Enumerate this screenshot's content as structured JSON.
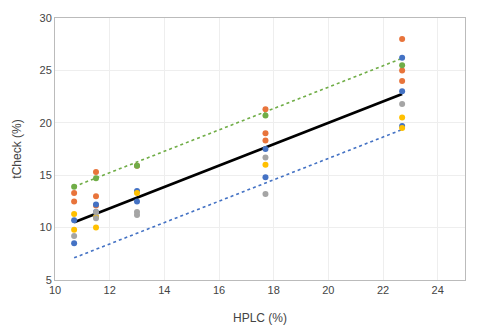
{
  "chart_data": {
    "type": "scatter",
    "xlabel": "HPLC (%)",
    "ylabel": "tCheck (%)",
    "xlim": [
      10,
      25
    ],
    "ylim": [
      5,
      30
    ],
    "xticks": [
      10,
      12,
      14,
      16,
      18,
      20,
      22,
      24
    ],
    "yticks": [
      5,
      10,
      15,
      20,
      25,
      30
    ],
    "grid": true,
    "series": [
      {
        "type": "scatter",
        "color": "#E8743B",
        "x": [
          10.7,
          10.7,
          11.5,
          11.5,
          11.5,
          13.0,
          17.7,
          17.7,
          17.7,
          22.7,
          22.7,
          22.7
        ],
        "values": [
          13.3,
          12.5,
          15.3,
          13.0,
          12.1,
          15.9,
          21.3,
          19.0,
          18.3,
          28.0,
          24.0,
          25.0
        ]
      },
      {
        "type": "scatter",
        "color": "#4472C4",
        "x": [
          10.7,
          10.7,
          11.5,
          11.5,
          11.5,
          13.0,
          13.0,
          17.7,
          17.7,
          22.7,
          22.7,
          22.7
        ],
        "values": [
          10.7,
          8.5,
          12.2,
          11.5,
          11.0,
          13.5,
          12.5,
          17.5,
          14.8,
          26.2,
          23.0,
          19.7
        ]
      },
      {
        "type": "scatter",
        "color": "#70AD47",
        "x": [
          10.7,
          11.5,
          13.0,
          17.7,
          22.7
        ],
        "values": [
          13.9,
          14.7,
          15.9,
          20.7,
          25.5
        ]
      },
      {
        "type": "scatter",
        "color": "#FFC000",
        "x": [
          10.7,
          10.7,
          11.5,
          11.5,
          13.0,
          17.7,
          22.7,
          22.7
        ],
        "values": [
          11.3,
          9.8,
          11.0,
          10.0,
          13.3,
          16.0,
          20.5,
          19.5
        ]
      },
      {
        "type": "scatter",
        "color": "#A5A5A5",
        "x": [
          10.7,
          11.5,
          11.5,
          13.0,
          13.0,
          17.7,
          17.7,
          22.7
        ],
        "values": [
          9.2,
          11.5,
          10.9,
          11.5,
          11.2,
          16.7,
          13.2,
          21.8
        ]
      },
      {
        "type": "line",
        "color": "black",
        "line_style": "solid",
        "x": [
          10.7,
          22.7
        ],
        "values": [
          10.514,
          22.754
        ]
      },
      {
        "type": "line",
        "color": "#70AD47",
        "line_style": "dotted",
        "x": [
          10.7,
          22.7
        ],
        "values": [
          13.914,
          26.154
        ]
      },
      {
        "type": "line",
        "color": "#4472C4",
        "line_style": "dotted",
        "x": [
          10.7,
          22.7
        ],
        "values": [
          7.114,
          19.354
        ]
      }
    ]
  }
}
